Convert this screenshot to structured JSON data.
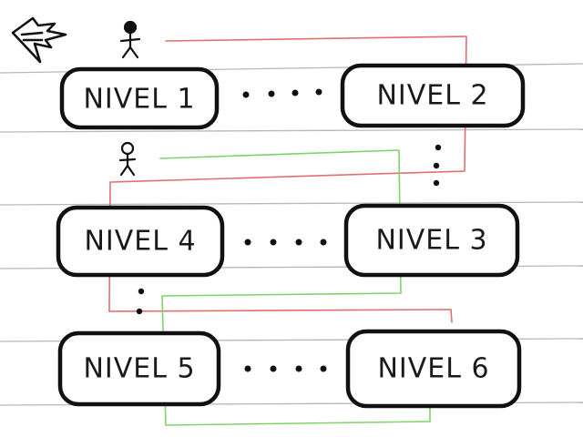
{
  "screen": {
    "background": "#ffffff",
    "rule_color": "#b8b8b8",
    "box_stroke": "#111111"
  },
  "navigation": {
    "back_icon": "back-arrow-icon"
  },
  "players": {
    "player_one_icon": "stick-figure-icon",
    "player_two_icon": "stick-figure-icon"
  },
  "levels": [
    {
      "label": "NIVEL 1"
    },
    {
      "label": "NIVEL 2"
    },
    {
      "label": "NIVEL 3"
    },
    {
      "label": "NIVEL 4"
    },
    {
      "label": "NIVEL 5"
    },
    {
      "label": "NIVEL 6"
    }
  ],
  "paths": {
    "red_color": "#e07070",
    "green_color": "#7fd36a"
  }
}
